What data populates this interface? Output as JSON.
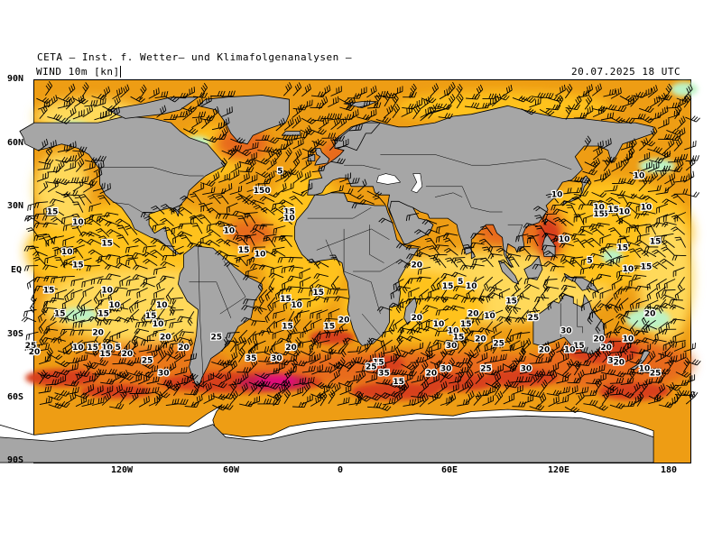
{
  "header": {
    "institute": "CETA — Inst. f. Wetter— und Klimafolgenanalysen —",
    "field_label": "WIND 10m [kn]",
    "valid_time": "20.07.2025 18 UTC"
  },
  "axes": {
    "latitude_labels": [
      "90N",
      "60N",
      "30N",
      "EQ",
      "30S",
      "60S",
      "90S"
    ],
    "longitude_labels": [
      "120W",
      "60W",
      "0",
      "60E",
      "120E",
      "180"
    ]
  },
  "colors": {
    "land": "#a6a6a6",
    "ice": "#ffffff",
    "calm_ocean": "#ffd95a",
    "light_wind": "#ffc21f",
    "moderate_wind": "#ee9d14",
    "fresh_wind": "#e86a1a",
    "strong_wind": "#d8401e",
    "gale": "#c81e4e",
    "storm": "#e0117a",
    "very_light": "#bdf2c4",
    "barbs": "#000000"
  },
  "speed_labels": [
    {
      "value": "15",
      "lon": -150,
      "lat": 27
    },
    {
      "value": "10",
      "lon": -136,
      "lat": 22
    },
    {
      "value": "15",
      "lon": -120,
      "lat": 12
    },
    {
      "value": "10",
      "lon": -142,
      "lat": 8
    },
    {
      "value": "15",
      "lon": -136,
      "lat": 2
    },
    {
      "value": "15",
      "lon": -152,
      "lat": -10
    },
    {
      "value": "10",
      "lon": -120,
      "lat": -10
    },
    {
      "value": "10",
      "lon": -116,
      "lat": -17
    },
    {
      "value": "10",
      "lon": -90,
      "lat": -17
    },
    {
      "value": "15",
      "lon": -146,
      "lat": -21
    },
    {
      "value": "15",
      "lon": -122,
      "lat": -21
    },
    {
      "value": "15",
      "lon": -96,
      "lat": -22
    },
    {
      "value": "10",
      "lon": -92,
      "lat": -26
    },
    {
      "value": "20",
      "lon": -125,
      "lat": -30
    },
    {
      "value": "20",
      "lon": -88,
      "lat": -32
    },
    {
      "value": "10",
      "lon": -136,
      "lat": -37
    },
    {
      "value": "15",
      "lon": -128,
      "lat": -37
    },
    {
      "value": "10",
      "lon": -120,
      "lat": -37
    },
    {
      "value": "5",
      "lon": -114,
      "lat": -37
    },
    {
      "value": "25",
      "lon": -162,
      "lat": -36
    },
    {
      "value": "20",
      "lon": -160,
      "lat": -39
    },
    {
      "value": "15",
      "lon": -121,
      "lat": -40
    },
    {
      "value": "20",
      "lon": -109,
      "lat": -40
    },
    {
      "value": "25",
      "lon": -98,
      "lat": -43
    },
    {
      "value": "20",
      "lon": -78,
      "lat": -37
    },
    {
      "value": "30",
      "lon": -89,
      "lat": -49
    },
    {
      "value": "25",
      "lon": -60,
      "lat": -32
    },
    {
      "value": "35",
      "lon": -41,
      "lat": -42
    },
    {
      "value": "30",
      "lon": -27,
      "lat": -42
    },
    {
      "value": "20",
      "lon": -19,
      "lat": -37
    },
    {
      "value": "15",
      "lon": -21,
      "lat": -27
    },
    {
      "value": "15",
      "lon": -22,
      "lat": -14
    },
    {
      "value": "10",
      "lon": -16,
      "lat": -17
    },
    {
      "value": "15",
      "lon": -4,
      "lat": -11
    },
    {
      "value": "15",
      "lon": 2,
      "lat": -27
    },
    {
      "value": "20",
      "lon": 10,
      "lat": -24
    },
    {
      "value": "10",
      "lon": -53,
      "lat": 18
    },
    {
      "value": "15",
      "lon": -45,
      "lat": 9
    },
    {
      "value": "10",
      "lon": -36,
      "lat": 7
    },
    {
      "value": "15",
      "lon": -20,
      "lat": 27
    },
    {
      "value": "10",
      "lon": -20,
      "lat": 24
    },
    {
      "value": "150",
      "lon": -35,
      "lat": 37
    },
    {
      "value": "5",
      "lon": -25,
      "lat": 46
    },
    {
      "value": "15",
      "lon": 29,
      "lat": -44
    },
    {
      "value": "25",
      "lon": 25,
      "lat": -46
    },
    {
      "value": "35",
      "lon": 32,
      "lat": -49
    },
    {
      "value": "15",
      "lon": 40,
      "lat": -53
    },
    {
      "value": "20",
      "lon": 58,
      "lat": -49
    },
    {
      "value": "30",
      "lon": 66,
      "lat": -47
    },
    {
      "value": "25",
      "lon": 88,
      "lat": -47
    },
    {
      "value": "20",
      "lon": 50,
      "lat": -23
    },
    {
      "value": "10",
      "lon": 62,
      "lat": -26
    },
    {
      "value": "15",
      "lon": 77,
      "lat": -26
    },
    {
      "value": "10",
      "lon": 70,
      "lat": -29
    },
    {
      "value": "15",
      "lon": 73,
      "lat": -32
    },
    {
      "value": "20",
      "lon": 81,
      "lat": -21
    },
    {
      "value": "10",
      "lon": 90,
      "lat": -22
    },
    {
      "value": "20",
      "lon": 85,
      "lat": -33
    },
    {
      "value": "25",
      "lon": 95,
      "lat": -35
    },
    {
      "value": "30",
      "lon": 69,
      "lat": -36
    },
    {
      "value": "30",
      "lon": 110,
      "lat": -47
    },
    {
      "value": "15",
      "lon": 102,
      "lat": -15
    },
    {
      "value": "25",
      "lon": 114,
      "lat": -23
    },
    {
      "value": "20",
      "lon": 50,
      "lat": 2
    },
    {
      "value": "15",
      "lon": 67,
      "lat": -8
    },
    {
      "value": "10",
      "lon": 80,
      "lat": -8
    },
    {
      "value": "5",
      "lon": 74,
      "lat": -6
    },
    {
      "value": "30",
      "lon": 132,
      "lat": -29
    },
    {
      "value": "20",
      "lon": 120,
      "lat": -38
    },
    {
      "value": "15",
      "lon": 139,
      "lat": -36
    },
    {
      "value": "10",
      "lon": 134,
      "lat": -38
    },
    {
      "value": "20",
      "lon": 150,
      "lat": -33
    },
    {
      "value": "20",
      "lon": 154,
      "lat": -37
    },
    {
      "value": "10",
      "lon": 166,
      "lat": -33
    },
    {
      "value": "35",
      "lon": 158,
      "lat": -43
    },
    {
      "value": "20",
      "lon": 161,
      "lat": -44
    },
    {
      "value": "10",
      "lon": 175,
      "lat": -47
    },
    {
      "value": "25",
      "lon": 181,
      "lat": -49
    },
    {
      "value": "20",
      "lon": 178,
      "lat": -21
    },
    {
      "value": "10",
      "lon": 131,
      "lat": 14
    },
    {
      "value": "15",
      "lon": 152,
      "lat": 26
    },
    {
      "value": "10",
      "lon": 150,
      "lat": 29
    },
    {
      "value": "15",
      "lon": 150,
      "lat": 26
    },
    {
      "value": "10",
      "lon": 164,
      "lat": 27
    },
    {
      "value": "10",
      "lon": 176,
      "lat": 29
    },
    {
      "value": "15",
      "lon": 158,
      "lat": 28
    },
    {
      "value": "15",
      "lon": 163,
      "lat": 10
    },
    {
      "value": "15",
      "lon": 181,
      "lat": 13
    },
    {
      "value": "10",
      "lon": 166,
      "lat": 0
    },
    {
      "value": "15",
      "lon": 176,
      "lat": 1
    },
    {
      "value": "5",
      "lon": 145,
      "lat": 4
    },
    {
      "value": "10",
      "lon": 172,
      "lat": 44
    },
    {
      "value": "10",
      "lon": 127,
      "lat": 35
    }
  ]
}
